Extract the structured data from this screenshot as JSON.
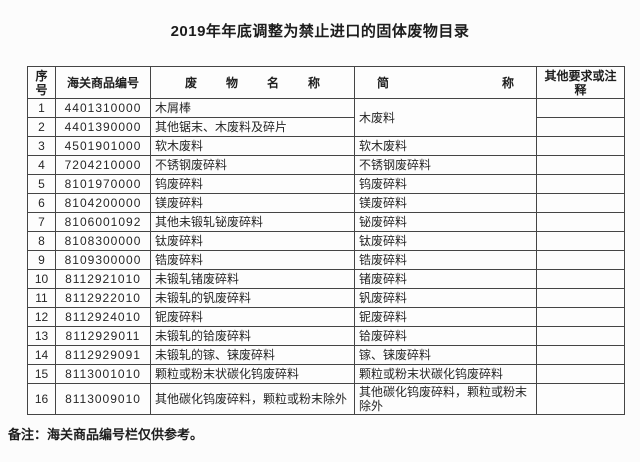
{
  "title": "2019年年底调整为禁止进口的固体废物目录",
  "table": {
    "headers": [
      "序号",
      "海关商品编号",
      "废 物 名 称",
      "简 称",
      "其他要求或注释"
    ],
    "rows": [
      {
        "no": "1",
        "code": "4401310000",
        "name": "木屑棒",
        "short": "木废料",
        "short_rowspan": 2,
        "note": ""
      },
      {
        "no": "2",
        "code": "4401390000",
        "name": "其他锯末、木废料及碎片",
        "short": null,
        "note": ""
      },
      {
        "no": "3",
        "code": "4501901000",
        "name": "软木废料",
        "short": "软木废料",
        "note": ""
      },
      {
        "no": "4",
        "code": "7204210000",
        "name": "不锈钢废碎料",
        "short": "不锈钢废碎料",
        "note": ""
      },
      {
        "no": "5",
        "code": "8101970000",
        "name": "钨废碎料",
        "short": "钨废碎料",
        "note": ""
      },
      {
        "no": "6",
        "code": "8104200000",
        "name": "镁废碎料",
        "short": "镁废碎料",
        "note": ""
      },
      {
        "no": "7",
        "code": "8106001092",
        "name": "其他未锻轧铋废碎料",
        "short": "铋废碎料",
        "note": ""
      },
      {
        "no": "8",
        "code": "8108300000",
        "name": "钛废碎料",
        "short": "钛废碎料",
        "note": ""
      },
      {
        "no": "9",
        "code": "8109300000",
        "name": "锆废碎料",
        "short": "锆废碎料",
        "note": ""
      },
      {
        "no": "10",
        "code": "8112921010",
        "name": "未锻轧锗废碎料",
        "short": "锗废碎料",
        "note": ""
      },
      {
        "no": "11",
        "code": "8112922010",
        "name": "未锻轧的钒废碎料",
        "short": "钒废碎料",
        "note": ""
      },
      {
        "no": "12",
        "code": "8112924010",
        "name": "铌废碎料",
        "short": "铌废碎料",
        "note": ""
      },
      {
        "no": "13",
        "code": "8112929011",
        "name": "未锻轧的铪废碎料",
        "short": "铪废碎料",
        "note": ""
      },
      {
        "no": "14",
        "code": "8112929091",
        "name": "未锻轧的镓、铼废碎料",
        "short": "镓、铼废碎料",
        "note": ""
      },
      {
        "no": "15",
        "code": "8113001010",
        "name": "颗粒或粉末状碳化钨废碎料",
        "short": "颗粒或粉末状碳化钨废碎料",
        "note": ""
      },
      {
        "no": "16",
        "code": "8113009010",
        "name": "其他碳化钨废碎料，颗粒或粉末除外",
        "short": "其他碳化钨废碎料，颗粒或粉末除外",
        "note": ""
      }
    ]
  },
  "footnote": "备注：海关商品编号栏仅供参考。"
}
